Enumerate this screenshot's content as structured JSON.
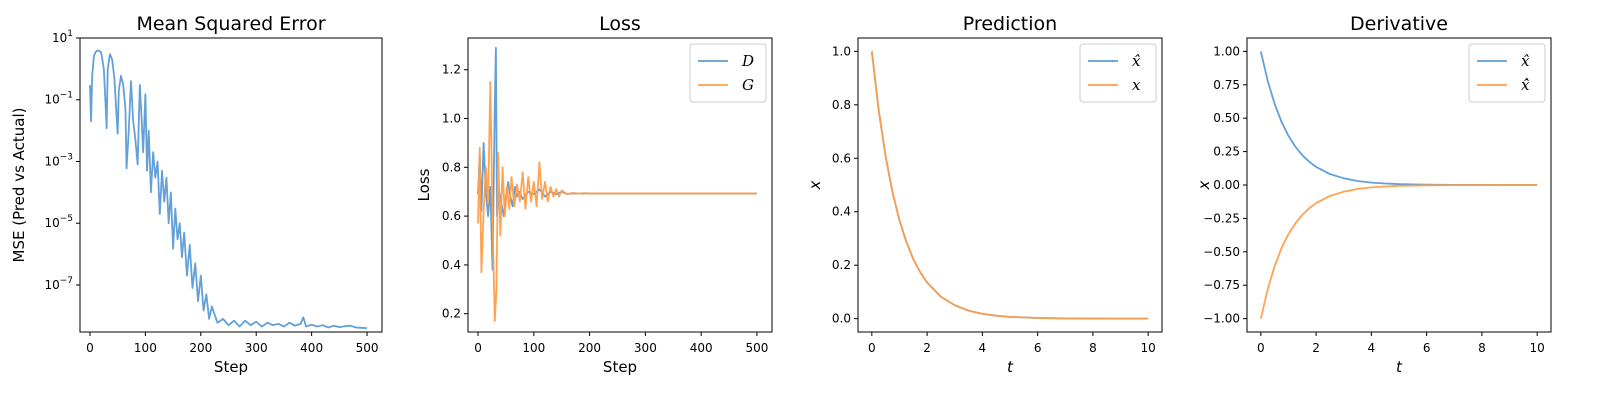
{
  "colors": {
    "blue": "#5b9bd5",
    "orange": "#ff9e4a"
  },
  "chart_data": [
    {
      "type": "line",
      "title": "Mean Squared Error",
      "xlabel": "Step",
      "ylabel": "MSE (Pred vs Actual)",
      "yscale": "log",
      "xlim": [
        -18,
        527
      ],
      "ylim": [
        3e-09,
        10
      ],
      "xticks": [
        0,
        100,
        200,
        300,
        400,
        500
      ],
      "yticks": [
        {
          "value": 10,
          "base": "10",
          "exp": "1"
        },
        {
          "value": 0.1,
          "base": "10",
          "exp": "−1"
        },
        {
          "value": 0.001,
          "base": "10",
          "exp": "−3"
        },
        {
          "value": 1e-05,
          "base": "10",
          "exp": "−5"
        },
        {
          "value": 1e-07,
          "base": "10",
          "exp": "−7"
        }
      ],
      "legend": null,
      "series": [
        {
          "color": "#5b9bd5",
          "x": [
            0,
            2,
            4,
            7,
            10,
            14,
            20,
            25,
            28,
            30,
            32,
            36,
            40,
            44,
            48,
            50,
            52,
            56,
            60,
            64,
            66,
            70,
            74,
            78,
            82,
            86,
            90,
            93,
            96,
            100,
            103,
            106,
            110,
            114,
            118,
            122,
            126,
            130,
            134,
            138,
            142,
            146,
            150,
            154,
            158,
            162,
            166,
            170,
            175,
            180,
            185,
            190,
            195,
            200,
            205,
            210,
            215,
            220,
            230,
            240,
            250,
            260,
            270,
            280,
            290,
            300,
            310,
            320,
            330,
            340,
            350,
            360,
            370,
            380,
            385,
            390,
            400,
            410,
            420,
            430,
            440,
            450,
            460,
            470,
            480,
            490,
            500
          ],
          "y": [
            0.3,
            0.02,
            0.6,
            2.5,
            3.5,
            4,
            3.5,
            1.0,
            0.08,
            0.012,
            1.0,
            3.0,
            2.0,
            0.5,
            0.03,
            0.008,
            0.2,
            0.6,
            0.3,
            0.05,
            0.0006,
            0.01,
            0.4,
            0.02,
            0.005,
            0.0008,
            0.3,
            0.03,
            0.002,
            0.15,
            0.0005,
            0.01,
            0.0001,
            0.002,
            0.0003,
            0.001,
            2e-05,
            0.0005,
            5e-05,
            0.0003,
            1e-05,
            0.0001,
            1.5e-06,
            3e-05,
            3e-06,
            1e-05,
            8e-07,
            5e-06,
            2e-07,
            2e-06,
            8e-08,
            5e-07,
            3e-08,
            2e-07,
            1.5e-08,
            5e-08,
            8e-09,
            2e-08,
            6e-09,
            8e-09,
            5e-09,
            7e-09,
            4.5e-09,
            7e-09,
            5e-09,
            6.5e-09,
            4.5e-09,
            6e-09,
            5e-09,
            5.5e-09,
            4.5e-09,
            6e-09,
            4.8e-09,
            5.5e-09,
            9e-09,
            4.5e-09,
            5.2e-09,
            4.5e-09,
            5e-09,
            4.2e-09,
            4.8e-09,
            4.3e-09,
            4.6e-09,
            4.8e-09,
            4.2e-09,
            4.1e-09,
            4e-09
          ]
        }
      ]
    },
    {
      "type": "line",
      "title": "Loss",
      "xlabel": "Step",
      "ylabel": "Loss",
      "yscale": "linear",
      "xlim": [
        -18,
        527
      ],
      "ylim": [
        0.125,
        1.33
      ],
      "xticks": [
        0,
        100,
        200,
        300,
        400,
        500
      ],
      "yticks": [
        0.2,
        0.4,
        0.6,
        0.8,
        1.0,
        1.2
      ],
      "yticks_decimals": 1,
      "legend": "top-right",
      "series": [
        {
          "name": "D",
          "color": "#5b9bd5",
          "x": [
            0,
            3,
            6,
            10,
            14,
            18,
            22,
            26,
            30,
            32,
            34,
            38,
            42,
            46,
            50,
            54,
            58,
            62,
            66,
            70,
            74,
            80,
            90,
            100,
            110,
            120,
            130,
            140,
            150,
            160,
            170,
            180,
            190,
            200,
            300,
            400,
            500
          ],
          "y": [
            0.69,
            0.85,
            0.62,
            0.9,
            0.7,
            0.6,
            0.72,
            0.38,
            1.05,
            1.29,
            0.6,
            0.7,
            0.65,
            0.6,
            0.68,
            0.74,
            0.68,
            0.64,
            0.72,
            0.68,
            0.7,
            0.67,
            0.7,
            0.69,
            0.71,
            0.68,
            0.7,
            0.69,
            0.7,
            0.69,
            0.693,
            0.692,
            0.693,
            0.693,
            0.693,
            0.693,
            0.693
          ]
        },
        {
          "name": "G",
          "color": "#ff9e4a",
          "x": [
            0,
            3,
            6,
            10,
            14,
            18,
            22,
            26,
            30,
            33,
            36,
            40,
            44,
            48,
            52,
            56,
            60,
            65,
            70,
            75,
            80,
            85,
            90,
            95,
            100,
            105,
            110,
            115,
            120,
            125,
            130,
            135,
            140,
            145,
            150,
            160,
            170,
            180,
            190,
            200,
            300,
            400,
            500
          ],
          "y": [
            0.57,
            0.88,
            0.37,
            0.62,
            0.8,
            0.65,
            1.15,
            0.6,
            0.17,
            0.3,
            0.86,
            0.52,
            0.8,
            0.6,
            0.72,
            0.63,
            0.76,
            0.64,
            0.73,
            0.66,
            0.78,
            0.63,
            0.76,
            0.66,
            0.74,
            0.64,
            0.82,
            0.67,
            0.74,
            0.66,
            0.72,
            0.68,
            0.71,
            0.68,
            0.705,
            0.69,
            0.695,
            0.692,
            0.694,
            0.693,
            0.693,
            0.693,
            0.693
          ]
        }
      ]
    },
    {
      "type": "line",
      "title": "Prediction",
      "xlabel": "t",
      "ylabel": "x",
      "yscale": "linear",
      "xlim": [
        -0.5,
        10.5
      ],
      "ylim": [
        -0.05,
        1.05
      ],
      "xticks": [
        0,
        2,
        4,
        6,
        8,
        10
      ],
      "yticks": [
        0.0,
        0.2,
        0.4,
        0.6,
        0.8,
        1.0
      ],
      "yticks_decimals": 1,
      "legend": "top-right",
      "series": [
        {
          "name": "x̂",
          "color": "#5b9bd5",
          "x": [
            0,
            0.25,
            0.5,
            0.75,
            1,
            1.25,
            1.5,
            1.75,
            2,
            2.5,
            3,
            3.5,
            4,
            4.5,
            5,
            6,
            7,
            8,
            9,
            10
          ],
          "y": [
            1.0,
            0.779,
            0.607,
            0.472,
            0.368,
            0.287,
            0.223,
            0.174,
            0.135,
            0.082,
            0.05,
            0.03,
            0.018,
            0.011,
            0.0067,
            0.0025,
            0.0009,
            0.0003,
            0.0001,
            0.0
          ]
        },
        {
          "name": "x",
          "color": "#ff9e4a",
          "x": [
            0,
            0.25,
            0.5,
            0.75,
            1,
            1.25,
            1.5,
            1.75,
            2,
            2.5,
            3,
            3.5,
            4,
            4.5,
            5,
            6,
            7,
            8,
            9,
            10
          ],
          "y": [
            1.0,
            0.779,
            0.607,
            0.472,
            0.368,
            0.287,
            0.223,
            0.174,
            0.135,
            0.082,
            0.05,
            0.03,
            0.018,
            0.011,
            0.0067,
            0.0025,
            0.0009,
            0.0003,
            0.0001,
            0.0
          ]
        }
      ]
    },
    {
      "type": "line",
      "title": "Derivative",
      "xlabel": "t",
      "ylabel": "x",
      "yscale": "linear",
      "xlim": [
        -0.5,
        10.5
      ],
      "ylim": [
        -1.1,
        1.1
      ],
      "xticks": [
        0,
        2,
        4,
        6,
        8,
        10
      ],
      "yticks": [
        -1.0,
        -0.75,
        -0.5,
        -0.25,
        0.0,
        0.25,
        0.5,
        0.75,
        1.0
      ],
      "yticks_decimals": 2,
      "legend": "top-right",
      "series": [
        {
          "name": "x̂",
          "color": "#5b9bd5",
          "x": [
            0,
            0.25,
            0.5,
            0.75,
            1,
            1.25,
            1.5,
            1.75,
            2,
            2.5,
            3,
            3.5,
            4,
            4.5,
            5,
            6,
            7,
            8,
            9,
            10
          ],
          "y": [
            1.0,
            0.779,
            0.607,
            0.472,
            0.368,
            0.287,
            0.223,
            0.174,
            0.135,
            0.082,
            0.05,
            0.03,
            0.018,
            0.011,
            0.0067,
            0.0025,
            0.0009,
            0.0003,
            0.0001,
            0.0
          ]
        },
        {
          "name": "x̂̇",
          "color": "#ff9e4a",
          "x": [
            0,
            0.25,
            0.5,
            0.75,
            1,
            1.25,
            1.5,
            1.75,
            2,
            2.5,
            3,
            3.5,
            4,
            4.5,
            5,
            6,
            7,
            8,
            9,
            10
          ],
          "y": [
            -1.0,
            -0.779,
            -0.607,
            -0.472,
            -0.368,
            -0.287,
            -0.223,
            -0.174,
            -0.135,
            -0.082,
            -0.05,
            -0.03,
            -0.018,
            -0.011,
            -0.0067,
            -0.0025,
            -0.0009,
            -0.0003,
            -0.0001,
            0.0
          ]
        }
      ]
    }
  ]
}
